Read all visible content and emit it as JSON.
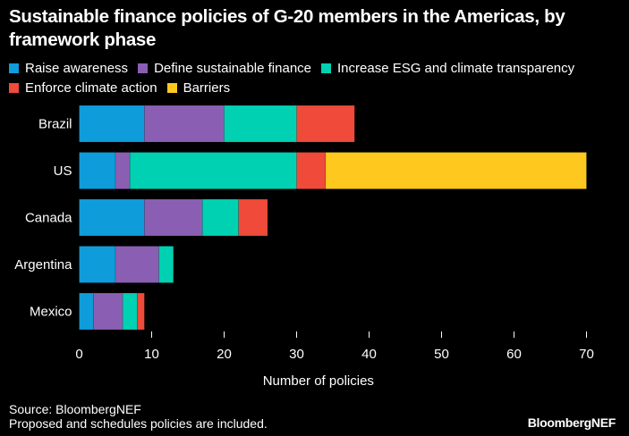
{
  "header": {
    "title": "Sustainable finance policies of G-20 members in the Americas, by framework phase"
  },
  "footer": {
    "source": "Source: BloombergNEF",
    "note": "Proposed and schedules policies are included.",
    "brand": "BloombergNEF"
  },
  "chart_data": {
    "type": "bar",
    "orientation": "horizontal",
    "stacked": true,
    "title": "Sustainable finance policies of G-20 members in the Americas, by framework phase",
    "xlabel": "Number of policies",
    "ylabel": "",
    "xlim": [
      0,
      70
    ],
    "xticks": [
      0,
      10,
      20,
      30,
      40,
      50,
      60,
      70
    ],
    "grid": false,
    "legend_position": "top-left",
    "categories": [
      "Brazil",
      "US",
      "Canada",
      "Argentina",
      "Mexico"
    ],
    "series": [
      {
        "name": "Raise awareness",
        "color": "#0f9cdb",
        "values": [
          9,
          5,
          9,
          5,
          2
        ]
      },
      {
        "name": "Define sustainable finance",
        "color": "#8a5fb3",
        "values": [
          11,
          2,
          8,
          6,
          4
        ]
      },
      {
        "name": "Increase ESG and climate transparency",
        "color": "#00d1b2",
        "values": [
          10,
          23,
          5,
          2,
          2
        ]
      },
      {
        "name": "Enforce climate action",
        "color": "#ef4a3a",
        "values": [
          8,
          4,
          4,
          0,
          1
        ]
      },
      {
        "name": "Barriers",
        "color": "#fec81e",
        "values": [
          0,
          36,
          0,
          0,
          0
        ]
      }
    ]
  }
}
